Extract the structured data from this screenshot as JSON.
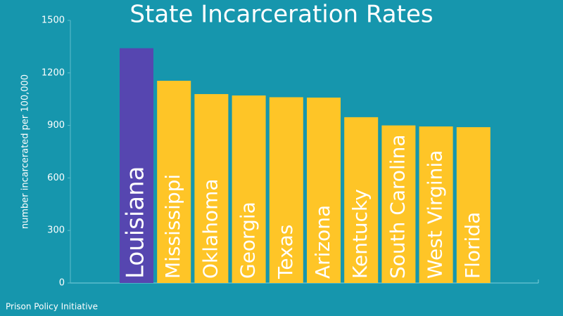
{
  "chart_data": {
    "type": "bar",
    "title": "State Incarceration Rates",
    "ylabel": "number incarcerated per 100,000",
    "source": "Prison Policy Initiative",
    "categories": [
      "Louisiana",
      "Mississippi",
      "Oklahoma",
      "Georgia",
      "Texas",
      "Arizona",
      "Kentucky",
      "South Carolina",
      "West Virginia",
      "Florida"
    ],
    "values": [
      1341,
      1155,
      1079,
      1071,
      1061,
      1059,
      947,
      900,
      894,
      890
    ],
    "colors": [
      "#5646b0",
      "#fec527",
      "#fec527",
      "#fec527",
      "#fec527",
      "#fec527",
      "#fec527",
      "#fec527",
      "#fec527",
      "#fec527"
    ],
    "ylim": [
      0,
      1500
    ],
    "yticks": [
      0,
      300,
      600,
      900,
      1200,
      1500
    ]
  }
}
